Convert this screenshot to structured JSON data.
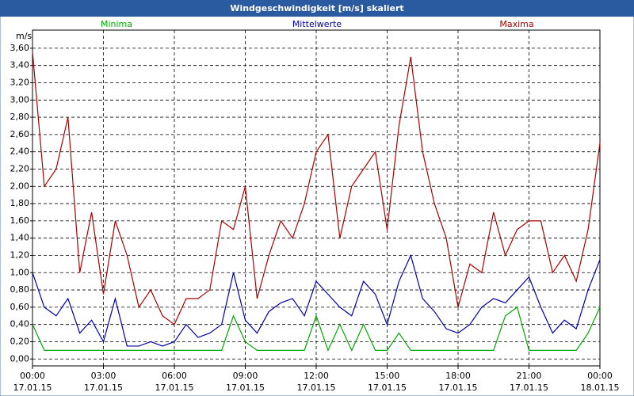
{
  "chart_data": {
    "type": "line",
    "title": "Windgeschwindigkeit [m/s] skaliert",
    "y_label": "m/s",
    "x": [
      0,
      0.5,
      1,
      1.5,
      2,
      2.5,
      3,
      3.5,
      4,
      4.5,
      5,
      5.5,
      6,
      6.5,
      7,
      7.5,
      8,
      8.5,
      9,
      9.5,
      10,
      10.5,
      11,
      11.5,
      12,
      12.5,
      13,
      13.5,
      14,
      14.5,
      15,
      15.5,
      16,
      16.5,
      17,
      17.5,
      18,
      18.5,
      19,
      19.5,
      20,
      20.5,
      21,
      21.5,
      22,
      22.5,
      23,
      23.5,
      24
    ],
    "series": [
      {
        "name": "Minima",
        "color": "#00aa00",
        "values": [
          0.4,
          0.1,
          0.1,
          0.1,
          0.1,
          0.1,
          0.1,
          0.1,
          0.1,
          0.1,
          0.1,
          0.1,
          0.1,
          0.1,
          0.1,
          0.1,
          0.1,
          0.5,
          0.2,
          0.1,
          0.1,
          0.1,
          0.1,
          0.1,
          0.5,
          0.1,
          0.4,
          0.1,
          0.4,
          0.1,
          0.1,
          0.3,
          0.1,
          0.1,
          0.1,
          0.1,
          0.1,
          0.1,
          0.1,
          0.1,
          0.5,
          0.6,
          0.1,
          0.1,
          0.1,
          0.1,
          0.1,
          0.3,
          0.6
        ]
      },
      {
        "name": "Mittelwerte",
        "color": "#0000aa",
        "values": [
          1.0,
          0.6,
          0.5,
          0.7,
          0.3,
          0.45,
          0.2,
          0.7,
          0.15,
          0.15,
          0.2,
          0.15,
          0.2,
          0.4,
          0.25,
          0.3,
          0.4,
          1.0,
          0.45,
          0.3,
          0.55,
          0.65,
          0.7,
          0.5,
          0.9,
          0.75,
          0.6,
          0.5,
          0.9,
          0.75,
          0.4,
          0.9,
          1.2,
          0.7,
          0.55,
          0.35,
          0.3,
          0.4,
          0.6,
          0.7,
          0.65,
          0.8,
          0.95,
          0.6,
          0.3,
          0.45,
          0.35,
          0.8,
          1.15
        ]
      },
      {
        "name": "Maxima",
        "color": "#aa0000",
        "values": [
          3.56,
          2.0,
          2.2,
          2.8,
          1.0,
          1.7,
          0.75,
          1.6,
          1.2,
          0.6,
          0.8,
          0.5,
          0.4,
          0.7,
          0.7,
          0.8,
          1.6,
          1.5,
          2.0,
          0.7,
          1.2,
          1.6,
          1.4,
          1.8,
          2.4,
          2.6,
          1.4,
          2.0,
          2.2,
          2.4,
          1.5,
          2.7,
          3.5,
          2.4,
          1.8,
          1.4,
          0.6,
          1.1,
          1.0,
          1.7,
          1.2,
          1.5,
          1.6,
          1.6,
          1.0,
          1.2,
          0.9,
          1.5,
          2.5
        ]
      }
    ],
    "xlim": [
      0,
      24
    ],
    "xticks": [
      {
        "value": 0,
        "label": "00:00\n17.01.15"
      },
      {
        "value": 3,
        "label": "03:00\n17.01.15"
      },
      {
        "value": 6,
        "label": "06:00\n17.01.15"
      },
      {
        "value": 9,
        "label": "09:00\n17.01.15"
      },
      {
        "value": 12,
        "label": "12:00\n17.01.15"
      },
      {
        "value": 15,
        "label": "15:00\n17.01.15"
      },
      {
        "value": 18,
        "label": "18:00\n17.01.15"
      },
      {
        "value": 21,
        "label": "21:00\n17.01.15"
      },
      {
        "value": 24,
        "label": "00:00\n18.01.15"
      }
    ],
    "ylim": [
      -0.08,
      3.81
    ],
    "yticks": [
      {
        "value": 0,
        "label": "0,00"
      },
      {
        "value": 0.2,
        "label": "0,20"
      },
      {
        "value": 0.4,
        "label": "0,40"
      },
      {
        "value": 0.6,
        "label": "0,60"
      },
      {
        "value": 0.8,
        "label": "0,80"
      },
      {
        "value": 1.0,
        "label": "1,00"
      },
      {
        "value": 1.2,
        "label": "1,20"
      },
      {
        "value": 1.4,
        "label": "1,40"
      },
      {
        "value": 1.6,
        "label": "1,60"
      },
      {
        "value": 1.8,
        "label": "1,80"
      },
      {
        "value": 2.0,
        "label": "2,00"
      },
      {
        "value": 2.2,
        "label": "2,20"
      },
      {
        "value": 2.4,
        "label": "2,40"
      },
      {
        "value": 2.6,
        "label": "2,60"
      },
      {
        "value": 2.8,
        "label": "2,80"
      },
      {
        "value": 3.0,
        "label": "3,00"
      },
      {
        "value": 3.2,
        "label": "3,20"
      },
      {
        "value": 3.4,
        "label": "3,40"
      },
      {
        "value": 3.6,
        "label": "3,60"
      }
    ],
    "grid": true
  }
}
